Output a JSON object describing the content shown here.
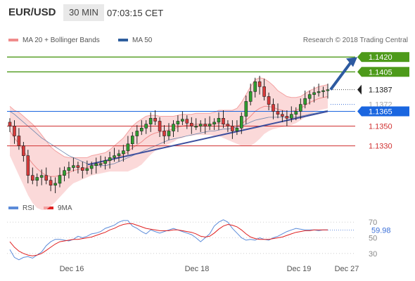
{
  "header": {
    "pair": "EUR/USD",
    "timeframe": "30 MIN",
    "time": "07:03:15 CET"
  },
  "legend": {
    "ma20": {
      "label": "MA 20 + Bollinger Bands",
      "color": "#f08c8c"
    },
    "ma50": {
      "label": "MA 50",
      "color": "#2e5e9e"
    }
  },
  "credit": "Research © 2018 Trading Central",
  "rsi_legend": {
    "rsi": {
      "label": "RSI",
      "color": "#5b8bd9"
    },
    "ma9": {
      "label": "9MA",
      "color": "#e02020"
    }
  },
  "chart_data": [
    {
      "type": "candlestick",
      "title": "",
      "ylim": [
        1.1277,
        1.1428
      ],
      "x_ticks": [
        "Dec 16",
        "Dec 18",
        "Dec 19",
        "Dec 27"
      ],
      "support_resistance_levels": [
        {
          "value": 1.142,
          "label": "1.1420",
          "color": "#4d9a1a",
          "kind": "resistance"
        },
        {
          "value": 1.1405,
          "label": "1.1405",
          "color": "#4d9a1a",
          "kind": "resistance"
        },
        {
          "value": 1.1387,
          "label": "1.1387",
          "color": "#222222",
          "kind": "last-price"
        },
        {
          "value": 1.1372,
          "label": "1.1372",
          "color": "#cccccc",
          "kind": "bollinger"
        },
        {
          "value": 1.1365,
          "label": "1.1365",
          "color": "#1a66e0",
          "kind": "pivot"
        },
        {
          "value": 1.135,
          "label": "1.1350",
          "color": "#d03030",
          "kind": "support"
        },
        {
          "value": 1.133,
          "label": "1.1330",
          "color": "#d03030",
          "kind": "support"
        }
      ],
      "close_series": [
        1.135,
        1.134,
        1.133,
        1.132,
        1.13,
        1.1295,
        1.1298,
        1.13,
        1.1295,
        1.129,
        1.1292,
        1.13,
        1.1305,
        1.1308,
        1.131,
        1.1308,
        1.1305,
        1.1307,
        1.131,
        1.1312,
        1.1312,
        1.1315,
        1.1318,
        1.132,
        1.1322,
        1.1325,
        1.1332,
        1.134,
        1.1345,
        1.1348,
        1.1352,
        1.1358,
        1.1355,
        1.1345,
        1.134,
        1.1345,
        1.1352,
        1.1355,
        1.1357,
        1.1353,
        1.135,
        1.135,
        1.1352,
        1.135,
        1.1352,
        1.1354,
        1.1358,
        1.1352,
        1.135,
        1.1345,
        1.1348,
        1.136,
        1.1375,
        1.1385,
        1.1395,
        1.139,
        1.138,
        1.1372,
        1.1365,
        1.1362,
        1.136,
        1.1358,
        1.1362,
        1.1365,
        1.1372,
        1.1378,
        1.1382,
        1.1384,
        1.1385,
        1.1386,
        1.1387
      ],
      "ma20_series": [
        1.1345,
        1.1338,
        1.1332,
        1.1325,
        1.1318,
        1.1312,
        1.1307,
        1.1303,
        1.13,
        1.1299,
        1.1299,
        1.13,
        1.1301,
        1.1303,
        1.1305,
        1.1306,
        1.1307,
        1.1308,
        1.131,
        1.1311,
        1.1312,
        1.1313,
        1.1315,
        1.1317,
        1.1319,
        1.1321,
        1.1324,
        1.1328,
        1.1331,
        1.1334,
        1.1338,
        1.1341,
        1.1343,
        1.1344,
        1.1345,
        1.1346,
        1.1347,
        1.1349,
        1.135,
        1.1351,
        1.1351,
        1.1352,
        1.1352,
        1.1352,
        1.1352,
        1.1352,
        1.1353,
        1.1352,
        1.1351,
        1.135,
        1.135,
        1.1352,
        1.1356,
        1.136,
        1.1365,
        1.1368,
        1.137,
        1.137,
        1.1369,
        1.1367,
        1.1366,
        1.1365,
        1.1365,
        1.1366,
        1.1368,
        1.1371,
        1.1374,
        1.1376,
        1.1378,
        1.1379,
        1.138
      ],
      "bollinger_band_width": [
        0.0025,
        0.0028,
        0.0032,
        0.0035,
        0.0038,
        0.004,
        0.004,
        0.0038,
        0.0035,
        0.003,
        0.0026,
        0.0022,
        0.0018,
        0.0015,
        0.0013,
        0.0012,
        0.0011,
        0.001,
        0.001,
        0.001,
        0.001,
        0.001,
        0.0011,
        0.0013,
        0.0015,
        0.0017,
        0.002,
        0.0022,
        0.0023,
        0.0023,
        0.0022,
        0.002,
        0.0018,
        0.0016,
        0.0015,
        0.0014,
        0.0013,
        0.0012,
        0.0012,
        0.0011,
        0.0011,
        0.0011,
        0.0011,
        0.0011,
        0.0011,
        0.0012,
        0.0013,
        0.0014,
        0.0015,
        0.0016,
        0.0018,
        0.0022,
        0.0026,
        0.003,
        0.0032,
        0.0031,
        0.0028,
        0.0025,
        0.0022,
        0.0019,
        0.0017,
        0.0015,
        0.0014,
        0.0013,
        0.0012,
        0.0012,
        0.0012,
        0.0012,
        0.0012,
        0.0012,
        0.0012
      ],
      "ma50_series": [
        1.1365,
        1.1362,
        1.1358,
        1.1354,
        1.135,
        1.1346,
        1.1342,
        1.1338,
        1.1335,
        1.1332,
        1.1329,
        1.1326,
        1.1323,
        1.132,
        1.1318,
        1.1316,
        1.1314,
        1.1312,
        1.1311,
        1.131,
        1.131,
        1.131,
        1.1311,
        1.1312,
        1.1314,
        1.1316,
        1.1318,
        1.132,
        1.1322,
        1.1324,
        1.1326,
        1.1328,
        1.133,
        1.1332,
        1.1334,
        1.1336,
        1.1337,
        1.1338,
        1.1339,
        1.134,
        1.1341,
        1.1342,
        1.1343,
        1.1344,
        1.1345,
        1.1345,
        1.1346,
        1.1347,
        1.1347,
        1.1348,
        1.1349,
        1.135,
        1.1352,
        1.1354,
        1.1356,
        1.1357,
        1.1358,
        1.1359,
        1.1359,
        1.1359,
        1.1359,
        1.1359,
        1.1359,
        1.1359,
        1.136,
        1.1361,
        1.1362,
        1.1363,
        1.1364,
        1.1365,
        1.1366
      ],
      "trendline": {
        "from": 1.1311,
        "to": 1.1365
      },
      "projection_arrow": {
        "from": 1.1387,
        "to": 1.142
      }
    },
    {
      "type": "line",
      "title": "",
      "ylim": [
        20,
        80
      ],
      "y_ticks": [
        70,
        50,
        30
      ],
      "current_value": "59.98",
      "series": [
        {
          "name": "RSI",
          "values": [
            35,
            25,
            22,
            25,
            26,
            24,
            28,
            32,
            40,
            45,
            48,
            48,
            47,
            46,
            48,
            52,
            50,
            52,
            55,
            56,
            58,
            62,
            64,
            66,
            70,
            72,
            72,
            65,
            62,
            58,
            55,
            60,
            58,
            56,
            58,
            60,
            62,
            60,
            58,
            56,
            54,
            50,
            45,
            50,
            55,
            65,
            70,
            73,
            70,
            62,
            56,
            50,
            47,
            48,
            47,
            50,
            48,
            47,
            50,
            52,
            55,
            58,
            60,
            62,
            61,
            60,
            60,
            60,
            59,
            60,
            60
          ]
        },
        {
          "name": "9MA",
          "values": [
            45,
            38,
            33,
            30,
            28,
            27,
            28,
            30,
            34,
            38,
            42,
            45,
            46,
            47,
            48,
            48,
            49,
            50,
            51,
            53,
            55,
            57,
            60,
            62,
            65,
            67,
            68,
            68,
            66,
            64,
            62,
            61,
            60,
            59,
            59,
            59,
            60,
            60,
            59,
            58,
            57,
            55,
            52,
            51,
            52,
            56,
            61,
            65,
            67,
            66,
            64,
            60,
            55,
            51,
            49,
            48,
            48,
            48,
            49,
            50,
            51,
            53,
            55,
            57,
            58,
            59,
            59,
            60,
            60,
            60,
            60
          ]
        }
      ]
    }
  ]
}
